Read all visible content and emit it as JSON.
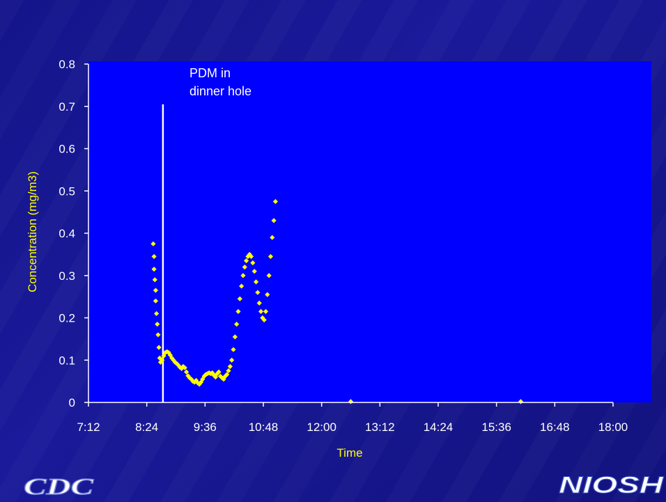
{
  "colors": {
    "slide_background": "#15158c",
    "plot_background": "#0000ff",
    "marker": "#ffff00",
    "axis": "#ffffff",
    "annotation_line": "#ffffff",
    "axis_title": "#ffff00"
  },
  "logos": {
    "left": "CDC",
    "right": "NIOSH"
  },
  "chart_data": {
    "type": "scatter",
    "title": "",
    "xlabel": "Time",
    "ylabel": "Concentration (mg/m3)",
    "xlim": [
      "7:12",
      "18:00"
    ],
    "ylim": [
      0,
      0.8
    ],
    "x_ticks": [
      "7:12",
      "8:24",
      "9:36",
      "10:48",
      "12:00",
      "13:12",
      "14:24",
      "15:36",
      "16:48",
      "18:00"
    ],
    "y_ticks": [
      "0",
      "0.1",
      "0.2",
      "0.3",
      "0.4",
      "0.5",
      "0.6",
      "0.7",
      "0.8"
    ],
    "grid": false,
    "legend": "none",
    "marker": "diamond",
    "annotations": [
      {
        "text": "PDM in dinner hole",
        "line_x": "8:44",
        "line_top_y": 0.705
      }
    ],
    "series": [
      {
        "points": [
          [
            "8:32",
            0.375
          ],
          [
            "8:33",
            0.345
          ],
          [
            "8:33",
            0.315
          ],
          [
            "8:34",
            0.29
          ],
          [
            "8:35",
            0.265
          ],
          [
            "8:35",
            0.24
          ],
          [
            "8:36",
            0.21
          ],
          [
            "8:37",
            0.185
          ],
          [
            "8:38",
            0.16
          ],
          [
            "8:39",
            0.13
          ],
          [
            "8:40",
            0.105
          ],
          [
            "8:41",
            0.095
          ],
          [
            "8:43",
            0.1
          ],
          [
            "8:45",
            0.11
          ],
          [
            "8:47",
            0.118
          ],
          [
            "8:49",
            0.12
          ],
          [
            "8:51",
            0.118
          ],
          [
            "8:53",
            0.112
          ],
          [
            "8:55",
            0.105
          ],
          [
            "8:57",
            0.1
          ],
          [
            "8:59",
            0.095
          ],
          [
            "9:01",
            0.092
          ],
          [
            "9:03",
            0.088
          ],
          [
            "9:05",
            0.083
          ],
          [
            "9:07",
            0.08
          ],
          [
            "9:09",
            0.085
          ],
          [
            "9:11",
            0.082
          ],
          [
            "9:13",
            0.072
          ],
          [
            "9:15",
            0.063
          ],
          [
            "9:17",
            0.058
          ],
          [
            "9:19",
            0.055
          ],
          [
            "9:21",
            0.05
          ],
          [
            "9:23",
            0.048
          ],
          [
            "9:25",
            0.052
          ],
          [
            "9:27",
            0.046
          ],
          [
            "9:29",
            0.043
          ],
          [
            "9:31",
            0.048
          ],
          [
            "9:33",
            0.055
          ],
          [
            "9:35",
            0.062
          ],
          [
            "9:37",
            0.066
          ],
          [
            "9:39",
            0.068
          ],
          [
            "9:41",
            0.07
          ],
          [
            "9:43",
            0.068
          ],
          [
            "9:45",
            0.07
          ],
          [
            "9:47",
            0.064
          ],
          [
            "9:49",
            0.06
          ],
          [
            "9:51",
            0.068
          ],
          [
            "9:53",
            0.072
          ],
          [
            "9:55",
            0.062
          ],
          [
            "9:57",
            0.058
          ],
          [
            "9:59",
            0.055
          ],
          [
            "10:01",
            0.062
          ],
          [
            "10:03",
            0.066
          ],
          [
            "10:05",
            0.075
          ],
          [
            "10:07",
            0.085
          ],
          [
            "10:09",
            0.1
          ],
          [
            "10:11",
            0.125
          ],
          [
            "10:13",
            0.155
          ],
          [
            "10:15",
            0.185
          ],
          [
            "10:17",
            0.215
          ],
          [
            "10:19",
            0.245
          ],
          [
            "10:21",
            0.275
          ],
          [
            "10:23",
            0.3
          ],
          [
            "10:25",
            0.32
          ],
          [
            "10:27",
            0.335
          ],
          [
            "10:29",
            0.345
          ],
          [
            "10:31",
            0.35
          ],
          [
            "10:33",
            0.345
          ],
          [
            "10:35",
            0.33
          ],
          [
            "10:37",
            0.31
          ],
          [
            "10:39",
            0.285
          ],
          [
            "10:41",
            0.26
          ],
          [
            "10:43",
            0.235
          ],
          [
            "10:45",
            0.215
          ],
          [
            "10:47",
            0.2
          ],
          [
            "10:49",
            0.195
          ],
          [
            "10:51",
            0.215
          ],
          [
            "10:53",
            0.255
          ],
          [
            "10:55",
            0.3
          ],
          [
            "10:57",
            0.345
          ],
          [
            "10:59",
            0.39
          ],
          [
            "11:01",
            0.43
          ],
          [
            "11:03",
            0.475
          ],
          [
            "12:36",
            0.002
          ],
          [
            "16:06",
            0.002
          ]
        ]
      }
    ]
  }
}
